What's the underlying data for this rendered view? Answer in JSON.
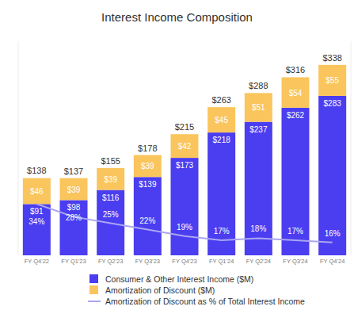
{
  "chart_data": {
    "type": "bar",
    "title": "Interest Income Composition",
    "categories": [
      "FY Q4'22",
      "FY Q1'23",
      "FY Q2'23",
      "FY Q3'23",
      "FY Q4'23",
      "FY Q1'24",
      "FY Q2'24",
      "FY Q3'24",
      "FY Q4'24"
    ],
    "series": [
      {
        "name": "Consumer & Other Interest Income ($M)",
        "type": "bar",
        "color": "#4b3df0",
        "values": [
          91,
          98,
          116,
          139,
          173,
          218,
          237,
          262,
          283
        ],
        "value_labels": [
          "$91",
          "$98",
          "$116",
          "$139",
          "$173",
          "$218",
          "$237",
          "$262",
          "$283"
        ]
      },
      {
        "name": "Amortization of Discount ($M)",
        "type": "bar",
        "color": "#fac55c",
        "values": [
          46,
          39,
          39,
          39,
          42,
          45,
          51,
          54,
          55
        ],
        "value_labels": [
          "$46",
          "$39",
          "$39",
          "$39",
          "$42",
          "$45",
          "$51",
          "$54",
          "$55"
        ]
      },
      {
        "name": "Amortization of Discount as % of Total Interest Income",
        "type": "line",
        "color": "#aaa6f2",
        "axis": "y2",
        "line_style": "solid",
        "values": [
          34,
          28,
          25,
          22,
          19,
          17,
          18,
          17,
          16
        ],
        "value_labels": [
          "34%",
          "28%",
          "25%",
          "22%",
          "19%",
          "17%",
          "18%",
          "17%",
          "16%"
        ]
      }
    ],
    "totals": {
      "values": [
        138,
        137,
        155,
        178,
        215,
        263,
        288,
        316,
        338
      ],
      "value_labels": [
        "$138",
        "$137",
        "$155",
        "$178",
        "$215",
        "$263",
        "$288",
        "$316",
        "$338"
      ]
    },
    "ylim": [
      0,
      380
    ],
    "yticks": [],
    "y2lim": [
      10,
      110
    ],
    "y2ticks": [],
    "stacked": true,
    "data_labels": true,
    "tick_labels": false,
    "grid": false,
    "legend": "bottom"
  }
}
